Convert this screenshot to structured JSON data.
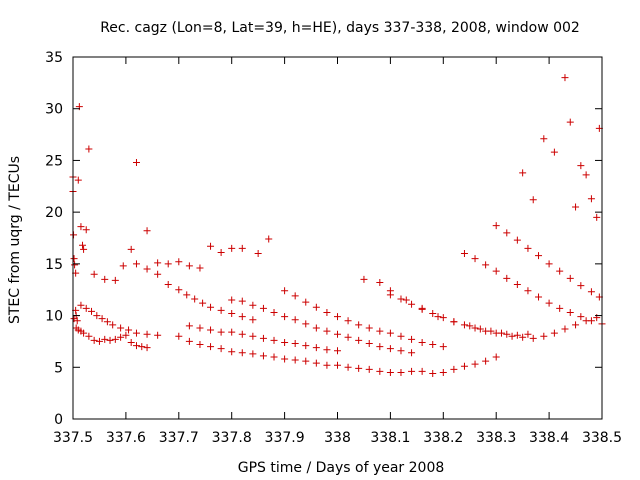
{
  "chart_data": {
    "type": "scatter",
    "title": "Rec. cagz (Lon=8, Lat=39, h=HE), days 337-338, 2008, window 002",
    "xlabel": "GPS time / Days of year 2008",
    "ylabel": "STEC from uqrg / TECUs",
    "xlim": [
      337.5,
      338.5
    ],
    "ylim": [
      0,
      35
    ],
    "xticks": [
      337.5,
      337.6,
      337.7,
      337.8,
      337.9,
      338,
      338.1,
      338.2,
      338.3,
      338.4,
      338.5
    ],
    "xtick_labels": [
      "337.5",
      "337.6",
      "337.7",
      "337.8",
      "337.9",
      "338",
      "338.1",
      "338.2",
      "338.3",
      "338.4",
      "338.5"
    ],
    "yticks": [
      0,
      5,
      10,
      15,
      20,
      25,
      30,
      35
    ],
    "ytick_labels": [
      "0",
      "5",
      "10",
      "15",
      "20",
      "25",
      "30",
      "35"
    ],
    "grid": false,
    "marker": "+",
    "color": "#cc0000",
    "series": [
      {
        "x": [
          337.5,
          337.5,
          337.501,
          337.502,
          337.503,
          337.505,
          337.506,
          337.508,
          337.51,
          337.512,
          337.515,
          337.518,
          337.52,
          337.525,
          337.53,
          337.502,
          337.506,
          337.51,
          337.515,
          337.52,
          337.53,
          337.54,
          337.55,
          337.56,
          337.57,
          337.58,
          337.59,
          337.6,
          337.61,
          337.62,
          337.63,
          337.64,
          337.505,
          337.515,
          337.525,
          337.535,
          337.545,
          337.555,
          337.565,
          337.575,
          337.59,
          337.605,
          337.62,
          337.64,
          337.66,
          337.62,
          337.64,
          337.66,
          337.68,
          337.7,
          337.715,
          337.73,
          337.745,
          337.76,
          337.78,
          337.8,
          337.82,
          337.84,
          337.54,
          337.56,
          337.58,
          337.595,
          337.61,
          337.62,
          337.64,
          337.66,
          337.68,
          337.7,
          337.72,
          337.74,
          337.76,
          337.78,
          337.8,
          337.82,
          337.85,
          337.87,
          337.7,
          337.72,
          337.74,
          337.76,
          337.78,
          337.8,
          337.82,
          337.84,
          337.86,
          337.88,
          337.9,
          337.92,
          337.94,
          337.96,
          337.98,
          337.72,
          337.74,
          337.76,
          337.78,
          337.8,
          337.82,
          337.84,
          337.86,
          337.88,
          337.9,
          337.92,
          337.94,
          337.96,
          337.98,
          338.0,
          337.8,
          337.82,
          337.84,
          337.86,
          337.88,
          337.9,
          337.92,
          337.94,
          337.96,
          337.98,
          338.0,
          338.02,
          338.04,
          338.06,
          338.08,
          338.1,
          338.12,
          338.14,
          337.9,
          337.92,
          337.94,
          337.96,
          337.98,
          338.0,
          338.02,
          338.04,
          338.06,
          338.08,
          338.1,
          338.12,
          338.14,
          338.16,
          338.18,
          338.2,
          338.0,
          338.02,
          338.04,
          338.06,
          338.08,
          338.1,
          338.12,
          338.14,
          338.16,
          338.18,
          338.2,
          338.22,
          338.24,
          338.26,
          338.28,
          338.3,
          338.1,
          338.12,
          338.14,
          338.16,
          338.18,
          338.2,
          338.22,
          338.24,
          338.26,
          338.28,
          338.3,
          338.32,
          338.34,
          338.36,
          338.05,
          338.08,
          338.1,
          338.13,
          338.16,
          338.19,
          338.22,
          338.25,
          338.27,
          338.29,
          338.31,
          338.33,
          338.35,
          338.37,
          338.39,
          338.41,
          338.43,
          338.45,
          338.47,
          338.49,
          338.24,
          338.26,
          338.28,
          338.3,
          338.32,
          338.34,
          338.36,
          338.38,
          338.4,
          338.42,
          338.44,
          338.46,
          338.48,
          338.5,
          338.3,
          338.32,
          338.34,
          338.36,
          338.38,
          338.4,
          338.42,
          338.44,
          338.46,
          338.48,
          338.495,
          338.35,
          338.37,
          338.39,
          338.41,
          338.43,
          338.44,
          338.45,
          338.46,
          338.47,
          338.48,
          338.49,
          338.495
        ],
        "y": [
          22.0,
          23.4,
          17.8,
          15.5,
          14.9,
          14.1,
          10.0,
          9.5,
          23.1,
          30.2,
          18.6,
          16.8,
          16.4,
          18.3,
          26.1,
          9.7,
          8.8,
          8.6,
          8.5,
          8.3,
          8.0,
          7.6,
          7.5,
          7.7,
          7.6,
          7.7,
          7.9,
          8.1,
          7.4,
          7.1,
          7.0,
          6.9,
          10.5,
          11.0,
          10.7,
          10.4,
          10.0,
          9.7,
          9.4,
          9.1,
          8.8,
          8.6,
          8.3,
          8.2,
          8.1,
          24.8,
          18.2,
          14.0,
          13.0,
          12.5,
          12.0,
          11.6,
          11.2,
          10.8,
          10.5,
          10.2,
          9.9,
          9.6,
          14.0,
          13.5,
          13.4,
          14.8,
          16.4,
          15.0,
          14.5,
          15.1,
          15.0,
          15.2,
          14.8,
          14.6,
          16.7,
          16.1,
          16.5,
          16.5,
          16.0,
          17.4,
          8.0,
          7.5,
          7.2,
          7.0,
          6.8,
          6.5,
          6.4,
          6.3,
          6.1,
          6.0,
          5.8,
          5.7,
          5.6,
          5.4,
          5.2,
          9.0,
          8.8,
          8.6,
          8.4,
          8.4,
          8.2,
          8.0,
          7.8,
          7.6,
          7.4,
          7.3,
          7.1,
          6.9,
          6.7,
          6.6,
          11.5,
          11.4,
          11.0,
          10.7,
          10.3,
          9.9,
          9.6,
          9.2,
          8.8,
          8.5,
          8.2,
          7.9,
          7.6,
          7.3,
          7.0,
          6.8,
          6.6,
          6.4,
          12.4,
          11.9,
          11.3,
          10.8,
          10.3,
          9.9,
          9.5,
          9.1,
          8.8,
          8.5,
          8.3,
          8.0,
          7.7,
          7.4,
          7.2,
          7.0,
          5.2,
          5.0,
          4.9,
          4.8,
          4.6,
          4.5,
          4.5,
          4.6,
          4.6,
          4.4,
          4.5,
          4.8,
          5.1,
          5.3,
          5.6,
          6.0,
          12.0,
          11.6,
          11.1,
          10.6,
          10.2,
          9.8,
          9.4,
          9.1,
          8.8,
          8.5,
          8.3,
          8.2,
          8.1,
          8.2,
          13.5,
          13.2,
          12.4,
          11.5,
          10.7,
          9.9,
          9.4,
          9.0,
          8.7,
          8.5,
          8.3,
          8.0,
          7.9,
          7.8,
          8.0,
          8.3,
          8.7,
          9.1,
          9.5,
          9.8,
          16.0,
          15.5,
          14.9,
          14.3,
          13.6,
          13.0,
          12.4,
          11.8,
          11.2,
          10.7,
          10.3,
          9.9,
          9.5,
          9.2,
          18.7,
          18.0,
          17.3,
          16.5,
          15.8,
          15.0,
          14.3,
          13.6,
          12.9,
          12.3,
          11.8,
          23.8,
          21.2,
          27.1,
          25.8,
          33.0,
          28.7,
          20.5,
          24.5,
          23.6,
          21.3,
          19.5,
          28.1
        ]
      }
    ]
  }
}
